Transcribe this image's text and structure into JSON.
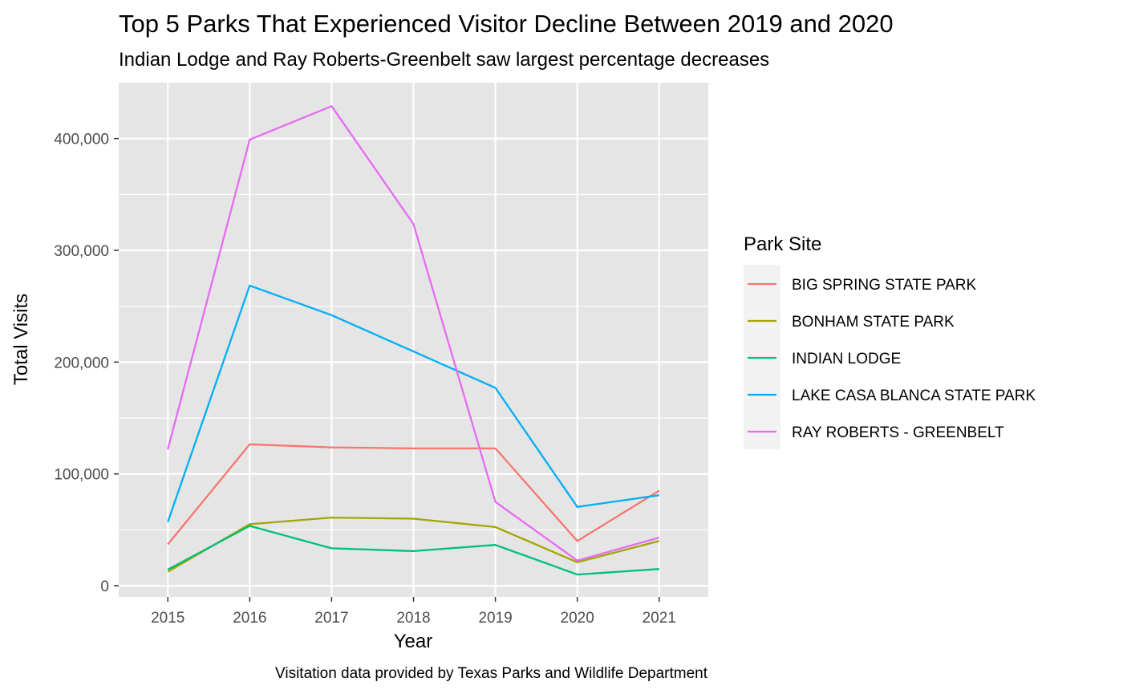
{
  "chart_data": {
    "type": "line",
    "title": "Top 5 Parks That Experienced Visitor Decline Between 2019 and 2020",
    "subtitle": "Indian Lodge and Ray Roberts-Greenbelt saw largest percentage decreases",
    "caption": "Visitation data provided by Texas Parks and Wildlife Department",
    "xlabel": "Year",
    "ylabel": "Total Visits",
    "x": [
      2015,
      2016,
      2017,
      2018,
      2019,
      2020,
      2021
    ],
    "x_tick_labels": [
      "2015",
      "2016",
      "2017",
      "2018",
      "2019",
      "2020",
      "2021"
    ],
    "xlim": [
      2014.4,
      2021.6
    ],
    "ylim": [
      -10000,
      450000
    ],
    "y_ticks": [
      0,
      100000,
      200000,
      300000,
      400000
    ],
    "y_tick_labels": [
      "0",
      "100,000",
      "200,000",
      "300,000",
      "400,000"
    ],
    "grid": true,
    "background_color": "#e5e5e5",
    "grid_color": "#ffffff",
    "legend_title": "Park Site",
    "legend_position": "right",
    "series": [
      {
        "name": "BIG SPRING STATE PARK",
        "color": "#f8766d",
        "values": [
          37000,
          126500,
          123800,
          122800,
          122800,
          40000,
          85000
        ]
      },
      {
        "name": "BONHAM STATE PARK",
        "color": "#a3a500",
        "values": [
          12500,
          55000,
          61000,
          60000,
          52500,
          21000,
          40000
        ]
      },
      {
        "name": "INDIAN LODGE",
        "color": "#00bf7d",
        "values": [
          14500,
          53500,
          33500,
          31000,
          36500,
          10000,
          15000
        ]
      },
      {
        "name": "LAKE CASA BLANCA STATE PARK",
        "color": "#00b0f6",
        "values": [
          57000,
          268500,
          242000,
          209500,
          177000,
          70500,
          81000
        ]
      },
      {
        "name": "RAY ROBERTS - GREENBELT",
        "color": "#e76bf3",
        "values": [
          122000,
          399000,
          429000,
          323500,
          75000,
          22500,
          43000
        ]
      }
    ]
  }
}
